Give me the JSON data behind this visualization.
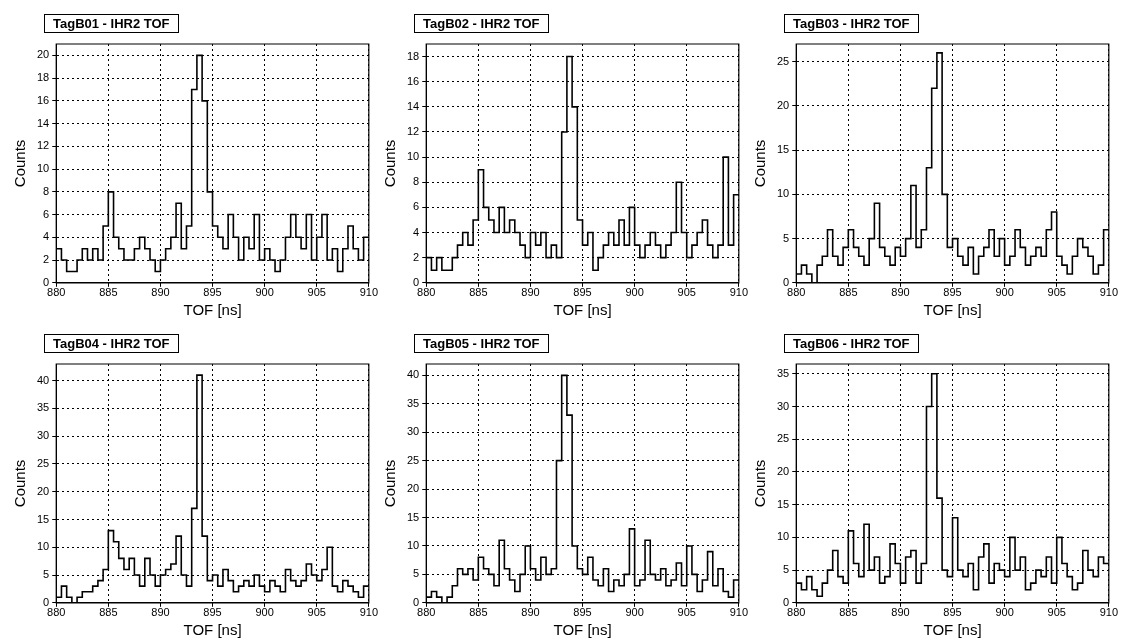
{
  "chart_data": [
    {
      "type": "histogram",
      "title": "TagB01 - IHR2 TOF",
      "xlabel": "TOF [ns]",
      "ylabel": "Counts",
      "grid": true,
      "color": "#000000",
      "xlim": [
        880,
        910
      ],
      "xticks": [
        880,
        885,
        890,
        895,
        900,
        905,
        910
      ],
      "ylim": [
        0,
        21
      ],
      "yticks": [
        0,
        2,
        4,
        6,
        8,
        10,
        12,
        14,
        16,
        18,
        20
      ],
      "bins": [
        880,
        880.5,
        881,
        881.5,
        882,
        882.5,
        883,
        883.5,
        884,
        884.5,
        885,
        885.5,
        886,
        886.5,
        887,
        887.5,
        888,
        888.5,
        889,
        889.5,
        890,
        890.5,
        891,
        891.5,
        892,
        892.5,
        893,
        893.5,
        894,
        894.5,
        895,
        895.5,
        896,
        896.5,
        897,
        897.5,
        898,
        898.5,
        899,
        899.5,
        900,
        900.5,
        901,
        901.5,
        902,
        902.5,
        903,
        903.5,
        904,
        904.5,
        905,
        905.5,
        906,
        906.5,
        907,
        907.5,
        908,
        908.5,
        909,
        909.5,
        910
      ],
      "values": [
        3,
        2,
        1,
        1,
        2,
        3,
        2,
        3,
        2,
        5,
        8,
        4,
        3,
        2,
        2,
        3,
        4,
        3,
        2,
        1,
        2,
        3,
        4,
        7,
        3,
        5,
        17,
        20,
        16,
        8,
        5,
        4,
        3,
        6,
        4,
        2,
        4,
        3,
        6,
        2,
        3,
        2,
        1,
        2,
        4,
        6,
        4,
        3,
        6,
        2,
        4,
        6,
        2,
        3,
        1,
        3,
        5,
        3,
        2,
        4
      ]
    },
    {
      "type": "histogram",
      "title": "TagB02 - IHR2 TOF",
      "xlabel": "TOF [ns]",
      "ylabel": "Counts",
      "grid": true,
      "color": "#000000",
      "xlim": [
        880,
        910
      ],
      "xticks": [
        880,
        885,
        890,
        895,
        900,
        905,
        910
      ],
      "ylim": [
        0,
        19
      ],
      "yticks": [
        0,
        2,
        4,
        6,
        8,
        10,
        12,
        14,
        16,
        18
      ],
      "bins": [
        880,
        880.5,
        881,
        881.5,
        882,
        882.5,
        883,
        883.5,
        884,
        884.5,
        885,
        885.5,
        886,
        886.5,
        887,
        887.5,
        888,
        888.5,
        889,
        889.5,
        890,
        890.5,
        891,
        891.5,
        892,
        892.5,
        893,
        893.5,
        894,
        894.5,
        895,
        895.5,
        896,
        896.5,
        897,
        897.5,
        898,
        898.5,
        899,
        899.5,
        900,
        900.5,
        901,
        901.5,
        902,
        902.5,
        903,
        903.5,
        904,
        904.5,
        905,
        905.5,
        906,
        906.5,
        907,
        907.5,
        908,
        908.5,
        909,
        909.5,
        910
      ],
      "values": [
        2,
        1,
        2,
        1,
        1,
        2,
        3,
        4,
        3,
        5,
        9,
        6,
        5,
        4,
        6,
        4,
        5,
        4,
        3,
        2,
        4,
        3,
        4,
        2,
        3,
        2,
        12,
        18,
        14,
        5,
        3,
        4,
        1,
        2,
        3,
        4,
        3,
        5,
        3,
        6,
        3,
        2,
        3,
        4,
        3,
        2,
        3,
        4,
        8,
        4,
        2,
        3,
        4,
        5,
        3,
        2,
        3,
        10,
        3,
        7
      ]
    },
    {
      "type": "histogram",
      "title": "TagB03 - IHR2 TOF",
      "xlabel": "TOF [ns]",
      "ylabel": "Counts",
      "grid": true,
      "color": "#000000",
      "xlim": [
        880,
        910
      ],
      "xticks": [
        880,
        885,
        890,
        895,
        900,
        905,
        910
      ],
      "ylim": [
        0,
        27
      ],
      "yticks": [
        0,
        5,
        10,
        15,
        20,
        25
      ],
      "bins": [
        880,
        880.5,
        881,
        881.5,
        882,
        882.5,
        883,
        883.5,
        884,
        884.5,
        885,
        885.5,
        886,
        886.5,
        887,
        887.5,
        888,
        888.5,
        889,
        889.5,
        890,
        890.5,
        891,
        891.5,
        892,
        892.5,
        893,
        893.5,
        894,
        894.5,
        895,
        895.5,
        896,
        896.5,
        897,
        897.5,
        898,
        898.5,
        899,
        899.5,
        900,
        900.5,
        901,
        901.5,
        902,
        902.5,
        903,
        903.5,
        904,
        904.5,
        905,
        905.5,
        906,
        906.5,
        907,
        907.5,
        908,
        908.5,
        909,
        909.5,
        910
      ],
      "values": [
        1,
        2,
        1,
        0,
        2,
        3,
        6,
        3,
        2,
        4,
        6,
        4,
        3,
        2,
        5,
        9,
        4,
        3,
        2,
        4,
        3,
        5,
        11,
        4,
        6,
        13,
        22,
        26,
        10,
        4,
        5,
        3,
        2,
        4,
        1,
        3,
        4,
        6,
        3,
        5,
        2,
        3,
        6,
        4,
        2,
        3,
        4,
        3,
        6,
        8,
        3,
        2,
        1,
        3,
        5,
        4,
        3,
        1,
        2,
        6
      ]
    },
    {
      "type": "histogram",
      "title": "TagB04 - IHR2 TOF",
      "xlabel": "TOF [ns]",
      "ylabel": "Counts",
      "grid": true,
      "color": "#000000",
      "xlim": [
        880,
        910
      ],
      "xticks": [
        880,
        885,
        890,
        895,
        900,
        905,
        910
      ],
      "ylim": [
        0,
        43
      ],
      "yticks": [
        0,
        5,
        10,
        15,
        20,
        25,
        30,
        35,
        40
      ],
      "bins": [
        880,
        880.5,
        881,
        881.5,
        882,
        882.5,
        883,
        883.5,
        884,
        884.5,
        885,
        885.5,
        886,
        886.5,
        887,
        887.5,
        888,
        888.5,
        889,
        889.5,
        890,
        890.5,
        891,
        891.5,
        892,
        892.5,
        893,
        893.5,
        894,
        894.5,
        895,
        895.5,
        896,
        896.5,
        897,
        897.5,
        898,
        898.5,
        899,
        899.5,
        900,
        900.5,
        901,
        901.5,
        902,
        902.5,
        903,
        903.5,
        904,
        904.5,
        905,
        905.5,
        906,
        906.5,
        907,
        907.5,
        908,
        908.5,
        909,
        909.5,
        910
      ],
      "values": [
        1,
        3,
        1,
        0,
        1,
        2,
        2,
        3,
        4,
        6,
        13,
        11,
        8,
        6,
        8,
        5,
        3,
        8,
        5,
        3,
        5,
        6,
        7,
        12,
        5,
        3,
        17,
        41,
        12,
        4,
        5,
        3,
        6,
        4,
        2,
        3,
        4,
        3,
        5,
        3,
        2,
        4,
        3,
        2,
        6,
        4,
        3,
        4,
        7,
        5,
        4,
        6,
        10,
        3,
        2,
        4,
        3,
        2,
        1,
        3
      ]
    },
    {
      "type": "histogram",
      "title": "TagB05 - IHR2 TOF",
      "xlabel": "TOF [ns]",
      "ylabel": "Counts",
      "grid": true,
      "color": "#000000",
      "xlim": [
        880,
        910
      ],
      "xticks": [
        880,
        885,
        890,
        895,
        900,
        905,
        910
      ],
      "ylim": [
        0,
        42
      ],
      "yticks": [
        0,
        5,
        10,
        15,
        20,
        25,
        30,
        35,
        40
      ],
      "bins": [
        880,
        880.5,
        881,
        881.5,
        882,
        882.5,
        883,
        883.5,
        884,
        884.5,
        885,
        885.5,
        886,
        886.5,
        887,
        887.5,
        888,
        888.5,
        889,
        889.5,
        890,
        890.5,
        891,
        891.5,
        892,
        892.5,
        893,
        893.5,
        894,
        894.5,
        895,
        895.5,
        896,
        896.5,
        897,
        897.5,
        898,
        898.5,
        899,
        899.5,
        900,
        900.5,
        901,
        901.5,
        902,
        902.5,
        903,
        903.5,
        904,
        904.5,
        905,
        905.5,
        906,
        906.5,
        907,
        907.5,
        908,
        908.5,
        909,
        909.5,
        910
      ],
      "values": [
        1,
        2,
        1,
        0,
        1,
        3,
        6,
        5,
        6,
        4,
        8,
        6,
        5,
        3,
        11,
        6,
        4,
        2,
        5,
        10,
        6,
        4,
        8,
        5,
        6,
        25,
        40,
        33,
        10,
        6,
        5,
        8,
        4,
        3,
        6,
        2,
        4,
        3,
        5,
        13,
        3,
        4,
        11,
        5,
        4,
        6,
        3,
        4,
        7,
        3,
        10,
        5,
        2,
        4,
        9,
        3,
        6,
        2,
        1,
        4
      ]
    },
    {
      "type": "histogram",
      "title": "TagB06 - IHR2 TOF",
      "xlabel": "TOF [ns]",
      "ylabel": "Counts",
      "grid": true,
      "color": "#000000",
      "xlim": [
        880,
        910
      ],
      "xticks": [
        880,
        885,
        890,
        895,
        900,
        905,
        910
      ],
      "ylim": [
        0,
        36.5
      ],
      "yticks": [
        0,
        5,
        10,
        15,
        20,
        25,
        30,
        35
      ],
      "bins": [
        880,
        880.5,
        881,
        881.5,
        882,
        882.5,
        883,
        883.5,
        884,
        884.5,
        885,
        885.5,
        886,
        886.5,
        887,
        887.5,
        888,
        888.5,
        889,
        889.5,
        890,
        890.5,
        891,
        891.5,
        892,
        892.5,
        893,
        893.5,
        894,
        894.5,
        895,
        895.5,
        896,
        896.5,
        897,
        897.5,
        898,
        898.5,
        899,
        899.5,
        900,
        900.5,
        901,
        901.5,
        902,
        902.5,
        903,
        903.5,
        904,
        904.5,
        905,
        905.5,
        906,
        906.5,
        907,
        907.5,
        908,
        908.5,
        909,
        909.5,
        910
      ],
      "values": [
        3,
        2,
        4,
        2,
        1,
        3,
        5,
        8,
        4,
        3,
        11,
        6,
        4,
        12,
        5,
        7,
        3,
        4,
        9,
        6,
        3,
        7,
        8,
        3,
        6,
        30,
        35,
        16,
        5,
        4,
        13,
        5,
        4,
        6,
        2,
        7,
        9,
        3,
        6,
        5,
        4,
        10,
        5,
        7,
        2,
        3,
        5,
        4,
        7,
        3,
        10,
        6,
        4,
        2,
        3,
        8,
        5,
        4,
        7,
        6
      ]
    }
  ]
}
